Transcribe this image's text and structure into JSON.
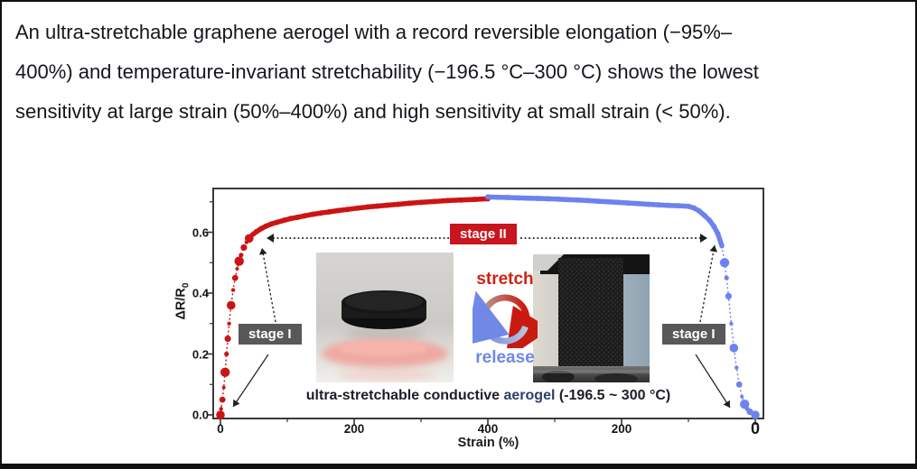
{
  "headline": {
    "lines": [
      "An ultra-stretchable graphene aerogel with a record reversible elongation (−95%–",
      "400%) and temperature-invariant stretchability (−196.5 °C–300 °C) shows the lowest",
      "sensitivity at large strain (50%–400%) and high sensitivity at small strain (< 50%)."
    ]
  },
  "chart": {
    "ylabel_main": "ΔR/R",
    "ylabel_sub": "0",
    "xlabel": "Strain (%)",
    "stage1_left": "stage I",
    "stage2": "stage II",
    "stage1_right": "stage I",
    "cycle": {
      "stretch": "stretch",
      "release": "release"
    },
    "caption": {
      "pre": "ultra-stretchable conductive ",
      "highlight": "aerogel",
      "post": " (-196.5 ~ 300 °C)"
    }
  },
  "chart_data": {
    "type": "scatter",
    "title": "Resistance change of ultra-stretchable conductive aerogel during a stretch–release cycle",
    "xlabel": "Strain (%)",
    "ylabel": "ΔR/R0",
    "x_tick_labels": [
      "0",
      "200",
      "400",
      "200",
      "0"
    ],
    "y_tick_labels": [
      "0.0",
      "0.2",
      "0.4",
      "0.6"
    ],
    "ylim": [
      0,
      0.75
    ],
    "x_axis_description": "strain increases 0→400% (stretch, red), then decreases 400→0% (release, blue)",
    "grid": false,
    "annotations": [
      "stage I",
      "stage II",
      "stage I",
      "stretch",
      "release",
      "ultra-stretchable conductive aerogel (-196.5 ~ 300 °C)"
    ],
    "series": [
      {
        "name": "stretch",
        "phase": "stretch",
        "color": "#cc1414",
        "points": [
          [
            0,
            0
          ],
          [
            1,
            0.02
          ],
          [
            3,
            0.05
          ],
          [
            5,
            0.09
          ],
          [
            7,
            0.14
          ],
          [
            9,
            0.2
          ],
          [
            11,
            0.25
          ],
          [
            13,
            0.3
          ],
          [
            16,
            0.36
          ],
          [
            19,
            0.41
          ],
          [
            22,
            0.45
          ],
          [
            25,
            0.48
          ],
          [
            28,
            0.505
          ],
          [
            31,
            0.525
          ],
          [
            35,
            0.55
          ],
          [
            39,
            0.567
          ],
          [
            43,
            0.58
          ],
          [
            48,
            0.592
          ],
          [
            54,
            0.602
          ],
          [
            61,
            0.612
          ],
          [
            68,
            0.62
          ],
          [
            76,
            0.627
          ],
          [
            85,
            0.633
          ],
          [
            95,
            0.639
          ],
          [
            105,
            0.645
          ],
          [
            115,
            0.649
          ],
          [
            126,
            0.654
          ],
          [
            138,
            0.659
          ],
          [
            150,
            0.663
          ],
          [
            163,
            0.667
          ],
          [
            176,
            0.671
          ],
          [
            190,
            0.675
          ],
          [
            205,
            0.679
          ],
          [
            220,
            0.683
          ],
          [
            235,
            0.686
          ],
          [
            250,
            0.689
          ],
          [
            266,
            0.692
          ],
          [
            282,
            0.695
          ],
          [
            300,
            0.698
          ],
          [
            320,
            0.701
          ],
          [
            340,
            0.704
          ],
          [
            360,
            0.706
          ],
          [
            380,
            0.708
          ],
          [
            400,
            0.71
          ]
        ]
      },
      {
        "name": "release",
        "phase": "release",
        "color": "#6e82ee",
        "points": [
          [
            400,
            0.716
          ],
          [
            385,
            0.715
          ],
          [
            370,
            0.714
          ],
          [
            355,
            0.713
          ],
          [
            340,
            0.712
          ],
          [
            325,
            0.711
          ],
          [
            310,
            0.71
          ],
          [
            295,
            0.709
          ],
          [
            280,
            0.707
          ],
          [
            265,
            0.706
          ],
          [
            250,
            0.704
          ],
          [
            235,
            0.702
          ],
          [
            220,
            0.7
          ],
          [
            205,
            0.698
          ],
          [
            190,
            0.696
          ],
          [
            175,
            0.694
          ],
          [
            160,
            0.692
          ],
          [
            145,
            0.69
          ],
          [
            130,
            0.688
          ],
          [
            115,
            0.687
          ],
          [
            100,
            0.685
          ],
          [
            92,
            0.68
          ],
          [
            84,
            0.67
          ],
          [
            76,
            0.655
          ],
          [
            68,
            0.638
          ],
          [
            62,
            0.62
          ],
          [
            56,
            0.595
          ],
          [
            50,
            0.555
          ],
          [
            46,
            0.5
          ],
          [
            43,
            0.45
          ],
          [
            40,
            0.39
          ],
          [
            36,
            0.3
          ],
          [
            32,
            0.22
          ],
          [
            28,
            0.155
          ],
          [
            24,
            0.1
          ],
          [
            20,
            0.06
          ],
          [
            16,
            0.035
          ],
          [
            12,
            0.02
          ],
          [
            8,
            0.01
          ],
          [
            4,
            0.005
          ],
          [
            0,
            0
          ]
        ]
      }
    ]
  },
  "colors": {
    "accent_red": "#cc1414",
    "accent_blue": "#6e82ee",
    "stage_box_gray": "#58585a",
    "stage_box_red": "#c9151d",
    "text": "#15151d"
  }
}
